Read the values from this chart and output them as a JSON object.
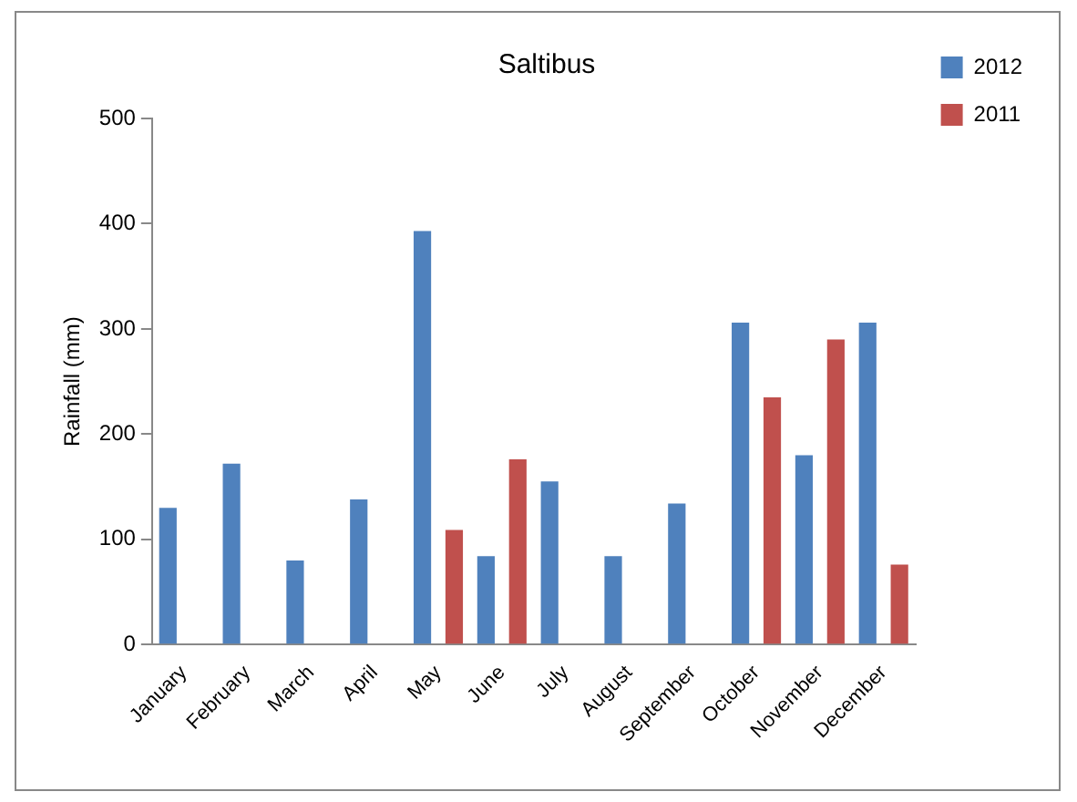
{
  "chart_data": {
    "type": "bar",
    "title": "Saltibus",
    "ylabel": "Rainfall (mm)",
    "categories": [
      "January",
      "February",
      "March",
      "April",
      "May",
      "June",
      "July",
      "August",
      "September",
      "October",
      "November",
      "December"
    ],
    "series": [
      {
        "name": "2012",
        "color": "#4f81bd",
        "values": [
          130,
          172,
          80,
          138,
          393,
          84,
          155,
          84,
          134,
          306,
          180,
          306
        ]
      },
      {
        "name": "2011",
        "color": "#c0504d",
        "values": [
          null,
          null,
          null,
          null,
          109,
          176,
          null,
          null,
          null,
          235,
          290,
          76
        ]
      }
    ],
    "ylim": [
      0,
      500
    ],
    "yticks": [
      0,
      100,
      200,
      300,
      400,
      500
    ],
    "grid": false,
    "legend": "top right"
  }
}
